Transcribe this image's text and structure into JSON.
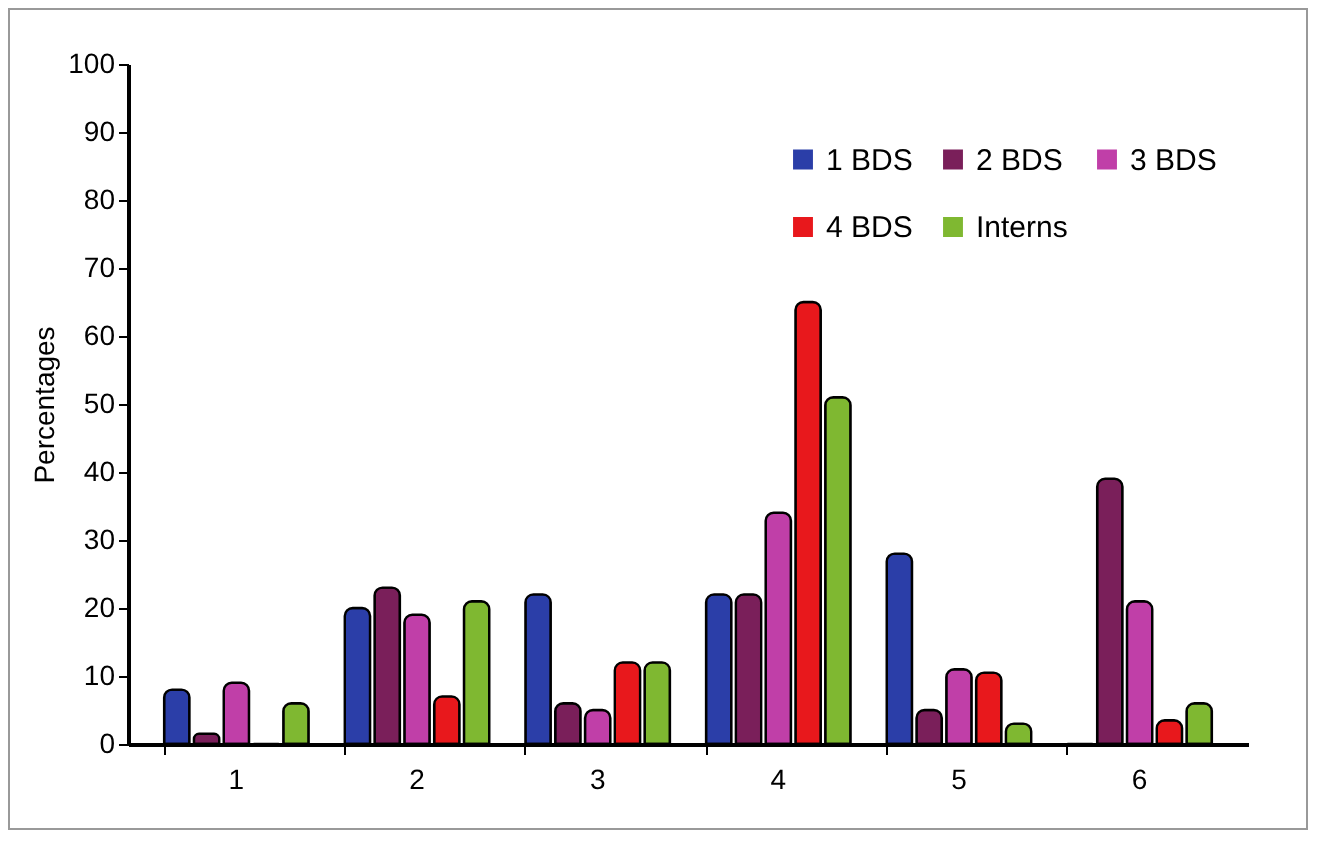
{
  "chart_data": {
    "type": "bar",
    "ylabel": "Percentages",
    "categories": [
      "1",
      "2",
      "3",
      "4",
      "5",
      "6"
    ],
    "series": [
      {
        "name": "1 BDS",
        "color": "#2b3ea8",
        "values": [
          8,
          20,
          22,
          22,
          28,
          0
        ]
      },
      {
        "name": "2 BDS",
        "color": "#7a1f5a",
        "values": [
          1.5,
          23,
          6,
          22,
          5,
          39
        ]
      },
      {
        "name": "3 BDS",
        "color": "#c03fa8",
        "values": [
          9,
          19,
          5,
          34,
          11,
          21
        ]
      },
      {
        "name": "4 BDS",
        "color": "#e8181c",
        "values": [
          0,
          7,
          12,
          65,
          10.5,
          3.5
        ]
      },
      {
        "name": "Interns",
        "color": "#7fb831",
        "values": [
          6,
          21,
          12,
          51,
          3,
          6
        ]
      }
    ],
    "ylim": [
      0,
      100
    ],
    "yticks": [
      0,
      10,
      20,
      30,
      40,
      50,
      60,
      70,
      80,
      90,
      100
    ],
    "grid": false,
    "legend": "top right"
  }
}
